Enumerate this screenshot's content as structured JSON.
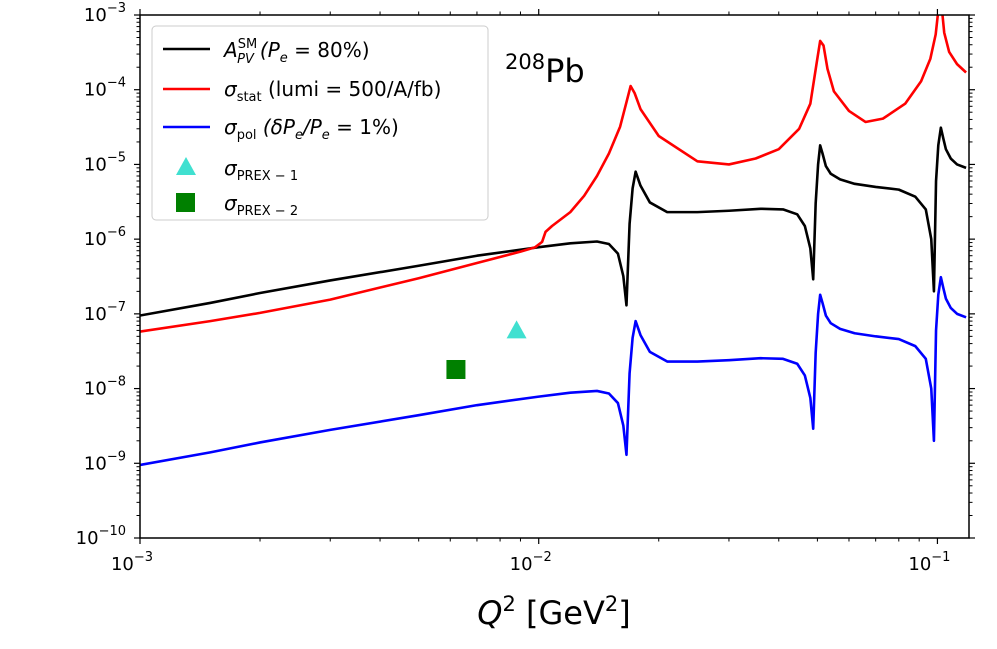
{
  "chart_data": {
    "type": "line",
    "xscale": "log",
    "yscale": "log",
    "xlim": [
      0.001,
      0.12
    ],
    "ylim": [
      1e-10,
      0.001
    ],
    "grid": false,
    "legend_position": "top-left",
    "annotation": {
      "text": "Pb",
      "superscript": "208"
    },
    "xlabel": {
      "base": "Q",
      "sup": "2",
      "unit_open": " [GeV",
      "unit_sup": "2",
      "unit_close": "]"
    },
    "x_ticks": [
      {
        "value": 0.001,
        "base": "10",
        "exp": "−3"
      },
      {
        "value": 0.01,
        "base": "10",
        "exp": "−2"
      },
      {
        "value": 0.1,
        "base": "10",
        "exp": "−1"
      }
    ],
    "y_ticks": [
      {
        "value": 1e-10,
        "base": "10",
        "exp": "−10"
      },
      {
        "value": 1e-09,
        "base": "10",
        "exp": "−9"
      },
      {
        "value": 1e-08,
        "base": "10",
        "exp": "−8"
      },
      {
        "value": 1e-07,
        "base": "10",
        "exp": "−7"
      },
      {
        "value": 1e-06,
        "base": "10",
        "exp": "−6"
      },
      {
        "value": 1e-05,
        "base": "10",
        "exp": "−5"
      },
      {
        "value": 0.0001,
        "base": "10",
        "exp": "−4"
      },
      {
        "value": 0.001,
        "base": "10",
        "exp": "−3"
      }
    ],
    "series": [
      {
        "name": "A_PV^SM (P_e = 80%)",
        "label_parts": {
          "sym": "A",
          "sub": "PV",
          "sup": "SM",
          "rest": "(P",
          "rest_sub": "e",
          "rest_tail": " = 80%)"
        },
        "color": "#000000",
        "x": [
          0.001,
          0.0015,
          0.002,
          0.003,
          0.005,
          0.007,
          0.01,
          0.012,
          0.014,
          0.015,
          0.0158,
          0.0163,
          0.0166,
          0.0169,
          0.0172,
          0.0175,
          0.018,
          0.019,
          0.021,
          0.025,
          0.03,
          0.036,
          0.041,
          0.0445,
          0.0465,
          0.048,
          0.0488,
          0.0495,
          0.0502,
          0.0508,
          0.0515,
          0.0525,
          0.054,
          0.057,
          0.062,
          0.07,
          0.08,
          0.088,
          0.0935,
          0.0965,
          0.098,
          0.0992,
          0.1005,
          0.102,
          0.1035,
          0.105,
          0.108,
          0.112,
          0.118
        ],
        "y": [
          9.5e-08,
          1.4e-07,
          1.9e-07,
          2.8e-07,
          4.4e-07,
          6e-07,
          7.8e-07,
          8.8e-07,
          9.3e-07,
          8.6e-07,
          6.4e-07,
          3.2e-07,
          1.3e-07,
          1.6e-06,
          4.8e-06,
          8e-06,
          5.2e-06,
          3.1e-06,
          2.3e-06,
          2.3e-06,
          2.4e-06,
          2.55e-06,
          2.5e-06,
          2.15e-06,
          1.5e-06,
          7.5e-07,
          2.9e-07,
          3e-06,
          1e-05,
          1.8e-05,
          1.4e-05,
          9.5e-06,
          7.5e-06,
          6.3e-06,
          5.5e-06,
          5e-06,
          4.6e-06,
          3.7e-06,
          2.5e-06,
          1e-06,
          2e-07,
          6e-06,
          1.8e-05,
          3.1e-05,
          2.2e-05,
          1.6e-05,
          1.2e-05,
          1e-05,
          9e-06
        ]
      },
      {
        "name": "σ_stat (lumi = 500/A/fb)",
        "label_parts": {
          "sym": "σ",
          "sub": "stat",
          "rest": " (lumi = 500/A/fb)"
        },
        "color": "#ff0000",
        "x": [
          0.001,
          0.0015,
          0.002,
          0.003,
          0.005,
          0.007,
          0.009,
          0.0098,
          0.0102,
          0.0104,
          0.0108,
          0.012,
          0.013,
          0.014,
          0.015,
          0.016,
          0.0166,
          0.017,
          0.0174,
          0.018,
          0.02,
          0.025,
          0.03,
          0.035,
          0.04,
          0.045,
          0.048,
          0.0498,
          0.0508,
          0.0518,
          0.053,
          0.055,
          0.06,
          0.066,
          0.073,
          0.083,
          0.091,
          0.096,
          0.099,
          0.1008,
          0.1025,
          0.104,
          0.107,
          0.112,
          0.118
        ],
        "y": [
          5.8e-08,
          8e-08,
          1.03e-07,
          1.55e-07,
          3e-07,
          4.8e-07,
          6.8e-07,
          7.8e-07,
          9.2e-07,
          1.25e-06,
          1.5e-06,
          2.3e-06,
          3.8e-06,
          7e-06,
          1.4e-05,
          3.2e-05,
          6.8e-05,
          0.000112,
          9e-05,
          5.5e-05,
          2.4e-05,
          1.1e-05,
          1e-05,
          1.2e-05,
          1.6e-05,
          3e-05,
          6.5e-05,
          0.00023,
          0.00045,
          0.00039,
          0.00019,
          9.5e-05,
          5.2e-05,
          3.7e-05,
          4.1e-05,
          6.5e-05,
          0.00013,
          0.00026,
          0.00055,
          0.00133,
          0.00128,
          0.00058,
          0.00032,
          0.00022,
          0.00017
        ]
      },
      {
        "name": "σ_pol (δP_e/P_e = 1%)",
        "label_parts": {
          "sym": "σ",
          "sub": "pol",
          "rest": " (δP",
          "rest_sub": "e",
          "rest_mid": "/P",
          "rest_sub2": "e",
          "rest_tail": " = 1%)"
        },
        "color": "#0000ff",
        "x": [
          0.001,
          0.0015,
          0.002,
          0.003,
          0.005,
          0.007,
          0.01,
          0.012,
          0.014,
          0.015,
          0.0158,
          0.0163,
          0.0166,
          0.0169,
          0.0172,
          0.0175,
          0.018,
          0.019,
          0.021,
          0.025,
          0.03,
          0.036,
          0.041,
          0.0445,
          0.0465,
          0.048,
          0.0488,
          0.0495,
          0.0502,
          0.0508,
          0.0515,
          0.0525,
          0.054,
          0.057,
          0.062,
          0.07,
          0.08,
          0.088,
          0.0935,
          0.0965,
          0.098,
          0.0992,
          0.1005,
          0.102,
          0.1035,
          0.105,
          0.108,
          0.112,
          0.118
        ],
        "y": [
          9.5e-10,
          1.4e-09,
          1.9e-09,
          2.8e-09,
          4.4e-09,
          6e-09,
          7.8e-09,
          8.8e-09,
          9.3e-09,
          8.6e-09,
          6.4e-09,
          3.2e-09,
          1.3e-09,
          1.6e-08,
          4.8e-08,
          8e-08,
          5.2e-08,
          3.1e-08,
          2.3e-08,
          2.3e-08,
          2.4e-08,
          2.55e-08,
          2.5e-08,
          2.15e-08,
          1.5e-08,
          7.5e-09,
          2.9e-09,
          3e-08,
          1e-07,
          1.8e-07,
          1.4e-07,
          9.5e-08,
          7.5e-08,
          6.3e-08,
          5.5e-08,
          5e-08,
          4.6e-08,
          3.7e-08,
          2.5e-08,
          1e-08,
          2e-09,
          6e-08,
          1.8e-07,
          3.1e-07,
          2.2e-07,
          1.6e-07,
          1.2e-07,
          1e-07,
          9e-08
        ]
      }
    ],
    "points": [
      {
        "name": "σ_PREX−1",
        "label_parts": {
          "sym": "σ",
          "sub": "PREX − 1"
        },
        "marker": "triangle",
        "color": "#40e0d0",
        "x": 0.0088,
        "y": 6e-08
      },
      {
        "name": "σ_PREX−2",
        "label_parts": {
          "sym": "σ",
          "sub": "PREX − 2"
        },
        "marker": "square",
        "color": "#008000",
        "x": 0.0062,
        "y": 1.8e-08
      }
    ]
  }
}
